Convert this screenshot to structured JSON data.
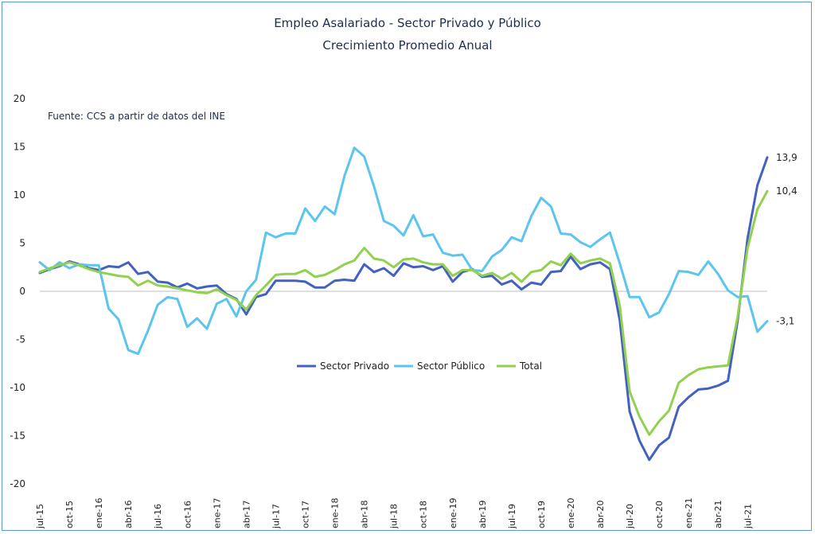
{
  "chart_data": {
    "type": "line",
    "title": "Empleo Asalariado - Sector Privado y Público",
    "subtitle": "Crecimiento Promedio Anual",
    "source": "Fuente: CCS a partir de datos del INE",
    "ylim": [
      -20,
      20
    ],
    "yticks": [
      "20",
      "15",
      "10",
      "5",
      "0",
      "-5",
      "-10",
      "-15",
      "-20"
    ],
    "xtick_labels": [
      "jul-15",
      "oct-15",
      "ene-16",
      "abr-16",
      "jul-16",
      "oct-16",
      "ene-17",
      "abr-17",
      "jul-17",
      "oct-17",
      "ene-18",
      "abr-18",
      "jul-18",
      "oct-18",
      "ene-19",
      "abr-19",
      "jul-19",
      "oct-19",
      "ene-20",
      "abr-20",
      "jul-20",
      "oct-20",
      "ene-21",
      "abr-21",
      "jul-21"
    ],
    "legend_position": "center",
    "grid": false,
    "series": [
      {
        "name": "Sector Privado",
        "color": "#4361bf",
        "values": [
          1.9,
          2.3,
          2.6,
          3.1,
          2.8,
          2.4,
          2.2,
          2.6,
          2.5,
          3.0,
          1.8,
          2.0,
          1.0,
          0.9,
          0.4,
          0.8,
          0.3,
          0.5,
          0.6,
          -0.3,
          -0.8,
          -2.4,
          -0.6,
          -0.3,
          1.1,
          1.1,
          1.1,
          1.0,
          0.4,
          0.4,
          1.1,
          1.2,
          1.1,
          2.8,
          2.0,
          2.4,
          1.6,
          2.9,
          2.5,
          2.6,
          2.2,
          2.6,
          1.0,
          2.0,
          2.3,
          1.5,
          1.6,
          0.7,
          1.1,
          0.2,
          0.9,
          0.7,
          2.0,
          2.1,
          3.6,
          2.3,
          2.8,
          3.0,
          2.3,
          -3.0,
          -12.5,
          -15.5,
          -17.5,
          -16.0,
          -15.2,
          -12.0,
          -11.0,
          -10.2,
          -10.1,
          -9.8,
          -9.3,
          -3.0,
          5.5,
          11.0,
          13.9
        ]
      },
      {
        "name": "Sector Público",
        "color": "#5bc5ef",
        "values": [
          3.0,
          2.2,
          3.0,
          2.4,
          2.8,
          2.7,
          2.7,
          -1.8,
          -2.9,
          -6.1,
          -6.5,
          -4.1,
          -1.4,
          -0.6,
          -0.8,
          -3.7,
          -2.8,
          -3.9,
          -1.3,
          -0.8,
          -2.6,
          0.0,
          1.2,
          6.1,
          5.6,
          6.0,
          6.0,
          8.6,
          7.3,
          8.8,
          8.0,
          12.0,
          14.9,
          14.0,
          10.9,
          7.3,
          6.8,
          5.8,
          7.9,
          5.7,
          5.9,
          4.0,
          3.7,
          3.8,
          2.2,
          2.1,
          3.6,
          4.3,
          5.6,
          5.2,
          7.8,
          9.7,
          8.8,
          6.0,
          5.9,
          5.1,
          4.6,
          5.4,
          6.1,
          2.9,
          -0.6,
          -0.6,
          -2.7,
          -2.2,
          -0.3,
          2.1,
          2.0,
          1.7,
          3.1,
          1.8,
          0.1,
          -0.6,
          -0.5,
          -4.2,
          -3.1
        ]
      },
      {
        "name": "Total",
        "color": "#92d050",
        "values": [
          2.0,
          2.4,
          2.7,
          3.0,
          2.7,
          2.3,
          2.0,
          1.8,
          1.6,
          1.5,
          0.6,
          1.1,
          0.6,
          0.5,
          0.3,
          0.1,
          -0.1,
          -0.2,
          0.2,
          -0.4,
          -0.9,
          -1.9,
          -0.4,
          0.6,
          1.7,
          1.8,
          1.8,
          2.2,
          1.5,
          1.7,
          2.2,
          2.8,
          3.2,
          4.5,
          3.4,
          3.2,
          2.5,
          3.3,
          3.4,
          3.0,
          2.8,
          2.8,
          1.6,
          2.2,
          2.2,
          1.6,
          1.9,
          1.3,
          1.9,
          1.0,
          2.0,
          2.2,
          3.1,
          2.7,
          3.9,
          2.9,
          3.2,
          3.4,
          2.9,
          -1.5,
          -10.4,
          -13.0,
          -14.9,
          -13.5,
          -12.4,
          -9.5,
          -8.7,
          -8.1,
          -7.9,
          -7.8,
          -7.7,
          -2.6,
          4.5,
          8.5,
          10.4
        ]
      }
    ],
    "end_labels": [
      "13,9",
      "10,4",
      "-3,1"
    ]
  }
}
